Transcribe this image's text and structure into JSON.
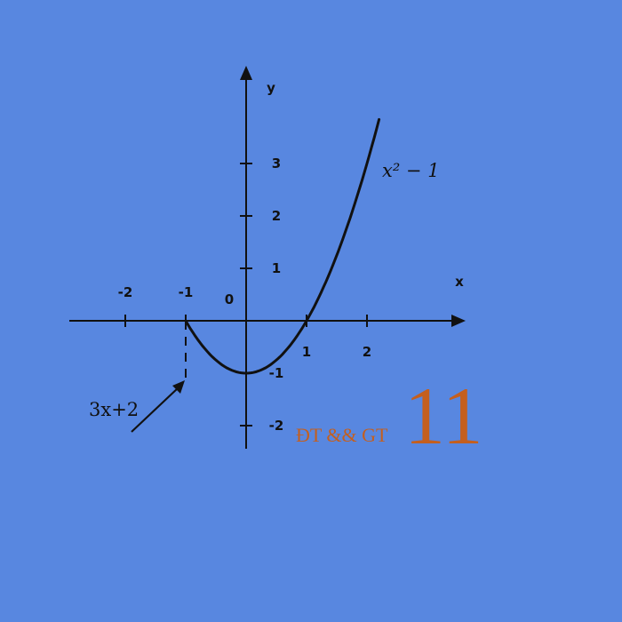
{
  "chart_data": {
    "type": "line",
    "xlabel": "x",
    "ylabel": "y",
    "origin_label": "0",
    "xlim": [
      -3,
      3.5
    ],
    "ylim": [
      -2.4,
      4.2
    ],
    "x_ticks": [
      {
        "value": -2,
        "label": "-2"
      },
      {
        "value": -1,
        "label": "-1"
      },
      {
        "value": 1,
        "label": "1"
      },
      {
        "value": 2,
        "label": "2"
      }
    ],
    "y_ticks": [
      {
        "value": 3,
        "label": "3"
      },
      {
        "value": 2,
        "label": "2"
      },
      {
        "value": 1,
        "label": "1"
      },
      {
        "value": -1,
        "label": "-1"
      },
      {
        "value": -2,
        "label": "-2"
      }
    ],
    "series": [
      {
        "name": "x² − 1",
        "formula": "x^2 - 1",
        "x_range": [
          -1,
          2.2
        ]
      }
    ],
    "annotations": {
      "curve_label": "x² − 1",
      "arrow_label": "3x+2",
      "dashed_x": -1,
      "dashed_y_range": [
        0,
        -1.2
      ]
    },
    "grid": false,
    "legend": "none"
  },
  "brand": {
    "small_text": "ĐT && GT",
    "big_text": "11",
    "color": "#c45f1e"
  },
  "colors": {
    "background": "#5887e0",
    "ink": "#111111"
  }
}
